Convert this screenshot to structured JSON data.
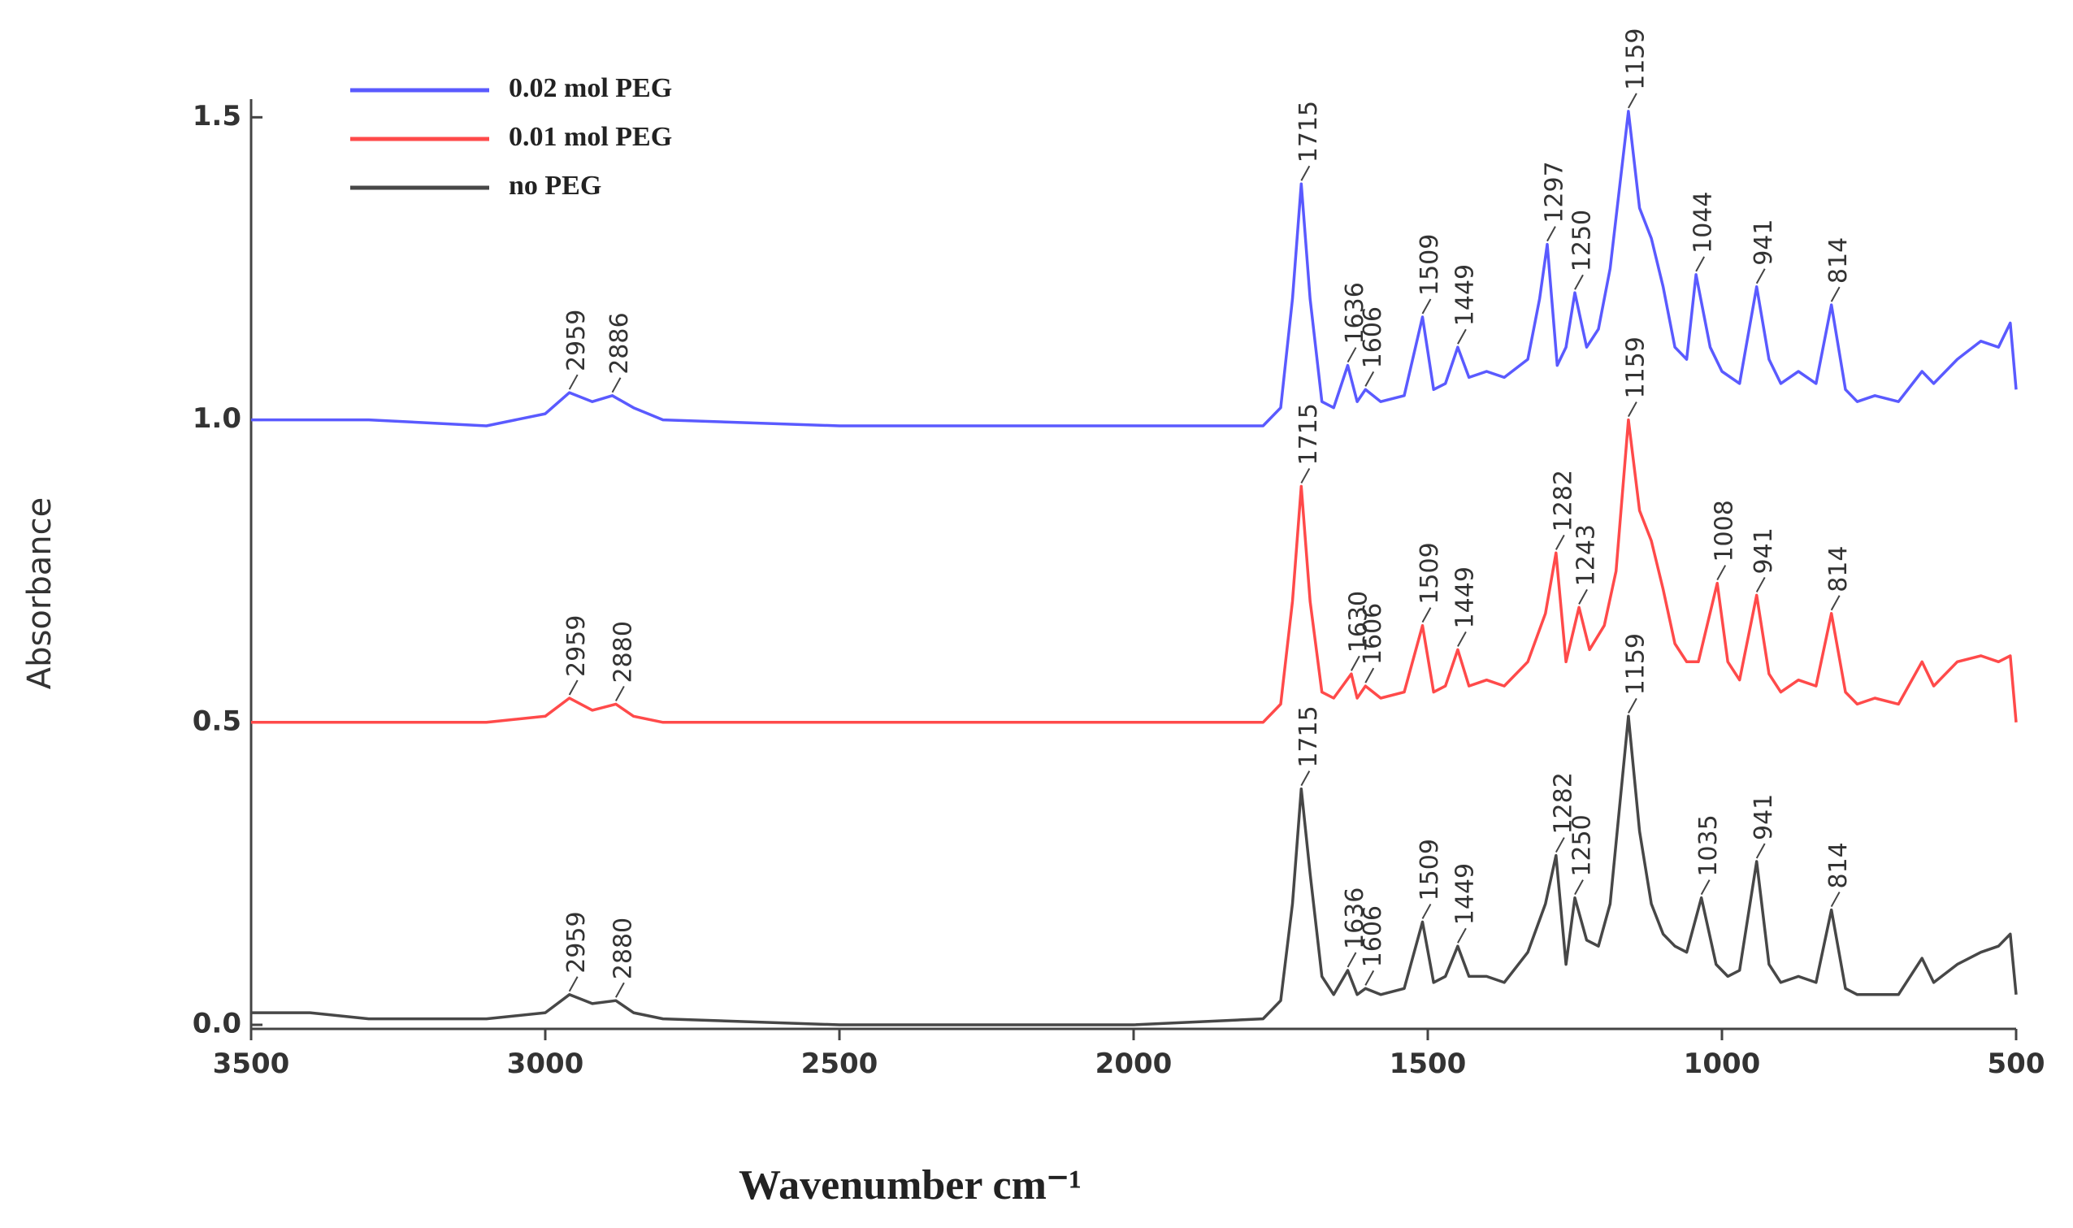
{
  "chart_data": {
    "type": "line",
    "xlabel": "Wavenumber cm⁻¹",
    "ylabel": "Absorbance",
    "xlim": [
      3500,
      500
    ],
    "ylim": [
      0,
      1.53
    ],
    "xticks": [
      3500,
      3000,
      2500,
      2000,
      1500,
      1000,
      500
    ],
    "yticks": [
      {
        "value": 0,
        "label": "0.0"
      },
      {
        "value": 0.5,
        "label": "0.5"
      },
      {
        "value": 1,
        "label": "1.0"
      },
      1.5
    ],
    "legend": "upper left",
    "series": [
      {
        "name": "0.02 mol PEG",
        "color": "#5a5aff",
        "x": [
          3500,
          3300,
          3100,
          3000,
          2959,
          2920,
          2886,
          2850,
          2800,
          2500,
          2000,
          1780,
          1750,
          1730,
          1715,
          1700,
          1680,
          1660,
          1636,
          1620,
          1606,
          1580,
          1540,
          1509,
          1490,
          1470,
          1449,
          1430,
          1400,
          1370,
          1330,
          1310,
          1297,
          1280,
          1265,
          1250,
          1230,
          1210,
          1190,
          1159,
          1140,
          1120,
          1100,
          1080,
          1060,
          1044,
          1020,
          1000,
          970,
          941,
          920,
          900,
          870,
          840,
          814,
          790,
          770,
          740,
          700,
          660,
          640,
          600,
          560,
          530,
          510,
          500
        ],
        "values": [
          1.0,
          1.0,
          0.99,
          1.01,
          1.045,
          1.03,
          1.04,
          1.02,
          1.0,
          0.99,
          0.99,
          0.99,
          1.02,
          1.2,
          1.39,
          1.2,
          1.03,
          1.02,
          1.09,
          1.03,
          1.05,
          1.03,
          1.04,
          1.17,
          1.05,
          1.06,
          1.12,
          1.07,
          1.08,
          1.07,
          1.1,
          1.2,
          1.29,
          1.09,
          1.12,
          1.21,
          1.12,
          1.15,
          1.25,
          1.51,
          1.35,
          1.3,
          1.22,
          1.12,
          1.1,
          1.24,
          1.12,
          1.08,
          1.06,
          1.22,
          1.1,
          1.06,
          1.08,
          1.06,
          1.19,
          1.05,
          1.03,
          1.04,
          1.03,
          1.08,
          1.06,
          1.1,
          1.13,
          1.12,
          1.16,
          1.05
        ],
        "peaks": [
          2959,
          2886,
          1715,
          1636,
          1606,
          1509,
          1449,
          1297,
          1250,
          1159,
          1044,
          941,
          814
        ]
      },
      {
        "name": "0.01 mol PEG",
        "color": "#ff4a4a",
        "x": [
          3500,
          3300,
          3100,
          3000,
          2959,
          2920,
          2880,
          2850,
          2800,
          2500,
          2000,
          1780,
          1750,
          1730,
          1715,
          1700,
          1680,
          1660,
          1630,
          1620,
          1606,
          1580,
          1540,
          1509,
          1490,
          1470,
          1449,
          1430,
          1400,
          1370,
          1330,
          1300,
          1282,
          1265,
          1243,
          1225,
          1200,
          1180,
          1159,
          1140,
          1120,
          1100,
          1080,
          1060,
          1040,
          1008,
          990,
          970,
          941,
          920,
          900,
          870,
          840,
          814,
          790,
          770,
          740,
          700,
          660,
          640,
          600,
          560,
          530,
          510,
          500
        ],
        "values": [
          0.5,
          0.5,
          0.5,
          0.51,
          0.54,
          0.52,
          0.53,
          0.51,
          0.5,
          0.5,
          0.5,
          0.5,
          0.53,
          0.7,
          0.89,
          0.7,
          0.55,
          0.54,
          0.58,
          0.54,
          0.56,
          0.54,
          0.55,
          0.66,
          0.55,
          0.56,
          0.62,
          0.56,
          0.57,
          0.56,
          0.6,
          0.68,
          0.78,
          0.6,
          0.69,
          0.62,
          0.66,
          0.75,
          1.0,
          0.85,
          0.8,
          0.72,
          0.63,
          0.6,
          0.6,
          0.73,
          0.6,
          0.57,
          0.71,
          0.58,
          0.55,
          0.57,
          0.56,
          0.68,
          0.55,
          0.53,
          0.54,
          0.53,
          0.6,
          0.56,
          0.6,
          0.61,
          0.6,
          0.61,
          0.5
        ],
        "peaks": [
          2959,
          2880,
          1715,
          1630,
          1606,
          1509,
          1449,
          1282,
          1243,
          1159,
          1008,
          941,
          814
        ]
      },
      {
        "name": "no PEG",
        "color": "#474747",
        "x": [
          3500,
          3400,
          3300,
          3100,
          3000,
          2959,
          2920,
          2880,
          2850,
          2800,
          2500,
          2000,
          1780,
          1750,
          1730,
          1715,
          1700,
          1680,
          1660,
          1636,
          1620,
          1606,
          1580,
          1540,
          1509,
          1490,
          1470,
          1449,
          1430,
          1400,
          1370,
          1330,
          1300,
          1282,
          1265,
          1250,
          1230,
          1210,
          1190,
          1159,
          1140,
          1120,
          1100,
          1080,
          1060,
          1035,
          1010,
          990,
          970,
          941,
          920,
          900,
          870,
          840,
          814,
          790,
          770,
          740,
          700,
          660,
          640,
          600,
          560,
          530,
          510,
          500
        ],
        "values": [
          0.02,
          0.02,
          0.01,
          0.01,
          0.02,
          0.05,
          0.035,
          0.04,
          0.02,
          0.01,
          0.0,
          0.0,
          0.01,
          0.04,
          0.2,
          0.39,
          0.25,
          0.08,
          0.05,
          0.09,
          0.05,
          0.06,
          0.05,
          0.06,
          0.17,
          0.07,
          0.08,
          0.13,
          0.08,
          0.08,
          0.07,
          0.12,
          0.2,
          0.28,
          0.1,
          0.21,
          0.14,
          0.13,
          0.2,
          0.51,
          0.32,
          0.2,
          0.15,
          0.13,
          0.12,
          0.21,
          0.1,
          0.08,
          0.09,
          0.27,
          0.1,
          0.07,
          0.08,
          0.07,
          0.19,
          0.06,
          0.05,
          0.05,
          0.05,
          0.11,
          0.07,
          0.1,
          0.12,
          0.13,
          0.15,
          0.05
        ],
        "peaks": [
          2959,
          2880,
          1715,
          1636,
          1606,
          1509,
          1449,
          1282,
          1250,
          1159,
          1035,
          941,
          814
        ]
      }
    ]
  }
}
